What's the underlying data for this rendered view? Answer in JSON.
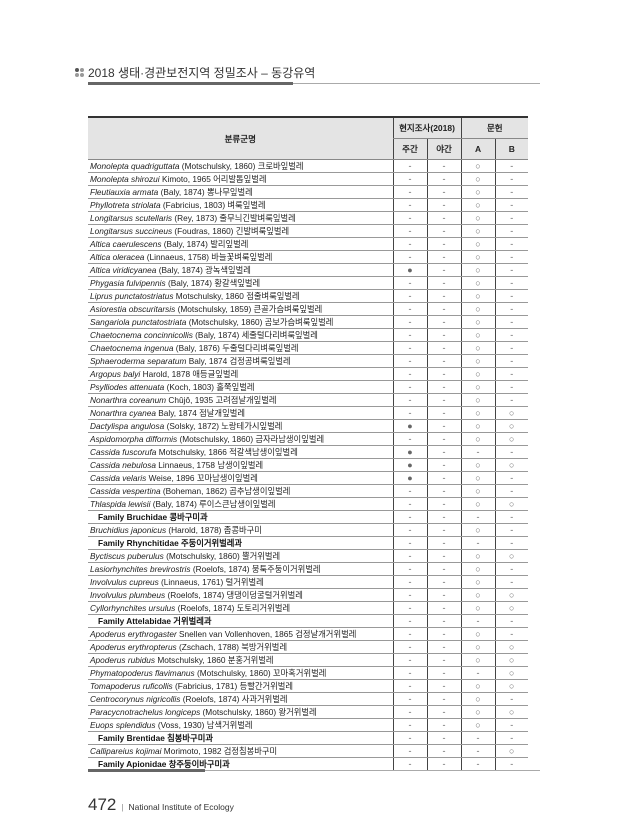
{
  "header": {
    "title": "2018 생태·경관보전지역 정밀조사 – 동강유역"
  },
  "table": {
    "col_name": "분류군명",
    "group_survey": "현지조사(2018)",
    "group_lit": "문헌",
    "sub_day": "주간",
    "sub_night": "야간",
    "sub_a": "A",
    "sub_b": "B",
    "rows": [
      {
        "sci": "Monolepta quadriguttata",
        "auth": " (Motschulsky, 1860) 크로바잎벌레",
        "m": [
          "-",
          "-",
          "○",
          "-"
        ]
      },
      {
        "sci": "Monolepta shirozui",
        "auth": " Kimoto, 1965 어리발톱잎벌레",
        "m": [
          "-",
          "-",
          "○",
          "-"
        ]
      },
      {
        "sci": "Fleutiauxia armata",
        "auth": " (Baly, 1874) 뽕나무잎벌레",
        "m": [
          "-",
          "-",
          "○",
          "-"
        ]
      },
      {
        "sci": "Phyllotreta striolata",
        "auth": " (Fabricius, 1803) 벼룩잎벌레",
        "m": [
          "-",
          "-",
          "○",
          "-"
        ]
      },
      {
        "sci": "Longitarsus scutellaris",
        "auth": " (Rey, 1873) 줄무늬긴발벼룩잎벌레",
        "m": [
          "-",
          "-",
          "○",
          "-"
        ]
      },
      {
        "sci": "Longitarsus succineus",
        "auth": " (Foudras, 1860) 긴발벼룩잎벌레",
        "m": [
          "-",
          "-",
          "○",
          "-"
        ]
      },
      {
        "sci": "Altica caerulescens",
        "auth": " (Baly, 1874) 발리잎벌레",
        "m": [
          "-",
          "-",
          "○",
          "-"
        ]
      },
      {
        "sci": "Altica oleracea",
        "auth": " (Linnaeus, 1758) 바늘꽃벼룩잎벌레",
        "m": [
          "-",
          "-",
          "○",
          "-"
        ]
      },
      {
        "sci": "Altica viridicyanea",
        "auth": " (Baly, 1874) 광녹색잎벌레",
        "m": [
          "●",
          "-",
          "○",
          "-"
        ]
      },
      {
        "sci": "Phygasia fulvipennis",
        "auth": " (Baly, 1874) 황갈색잎벌레",
        "m": [
          "-",
          "-",
          "○",
          "-"
        ]
      },
      {
        "sci": "Liprus punctatostriatus",
        "auth": " Motschulsky, 1860 점줄벼룩잎벌레",
        "m": [
          "-",
          "-",
          "○",
          "-"
        ]
      },
      {
        "sci": "Asiorestia obscuritarsis",
        "auth": " (Motschulsky, 1859) 큰골가슴벼룩잎벌레",
        "m": [
          "-",
          "-",
          "○",
          "-"
        ]
      },
      {
        "sci": "Sangariola punctatostriata",
        "auth": " (Motschulsky, 1860) 곰보가슴벼룩잎벌레",
        "m": [
          "-",
          "-",
          "○",
          "-"
        ]
      },
      {
        "sci": "Chaetocnema concinnicollis",
        "auth": " (Baly, 1874) 세줄털다리벼룩잎벌레",
        "m": [
          "-",
          "-",
          "○",
          "-"
        ]
      },
      {
        "sci": "Chaetocnema ingenua",
        "auth": " (Baly, 1876) 두줄털다리벼룩잎벌레",
        "m": [
          "-",
          "-",
          "○",
          "-"
        ]
      },
      {
        "sci": "Sphaeroderma separatum",
        "auth": " Baly, 1874 검정공벼룩잎벌레",
        "m": [
          "-",
          "-",
          "○",
          "-"
        ]
      },
      {
        "sci": "Argopus balyi",
        "auth": " Harold, 1878 애등글잎벌레",
        "m": [
          "-",
          "-",
          "○",
          "-"
        ]
      },
      {
        "sci": "Psylliodes attenuata",
        "auth": " (Koch, 1803) 홀쭉잎벌레",
        "m": [
          "-",
          "-",
          "○",
          "-"
        ]
      },
      {
        "sci": "Nonarthra coreanum",
        "auth": " Chûjô, 1935 고려점날개잎벌레",
        "m": [
          "-",
          "-",
          "○",
          "-"
        ]
      },
      {
        "sci": "Nonarthra cyanea",
        "auth": " Baly, 1874 점날개잎벌레",
        "m": [
          "-",
          "-",
          "○",
          "○"
        ]
      },
      {
        "sci": "Dactylispa angulosa",
        "auth": " (Solsky, 1872) 노랑테가시잎벌레",
        "m": [
          "●",
          "-",
          "○",
          "○"
        ]
      },
      {
        "sci": "Aspidomorpha difformis",
        "auth": " (Motschulsky, 1860) 금자라남생이잎벌레",
        "m": [
          "-",
          "-",
          "○",
          "○"
        ]
      },
      {
        "sci": "Cassida fuscorufa",
        "auth": " Motschulsky, 1866 적갈색남생이잎벌레",
        "m": [
          "●",
          "-",
          "-",
          "-"
        ]
      },
      {
        "sci": "Cassida nebulosa",
        "auth": " Linnaeus, 1758 남생이잎벌레",
        "m": [
          "●",
          "-",
          "○",
          "○"
        ]
      },
      {
        "sci": "Cassida velaris",
        "auth": " Weise, 1896 꼬마남생이잎벌레",
        "m": [
          "●",
          "-",
          "○",
          "-"
        ]
      },
      {
        "sci": "Cassida vespertina",
        "auth": " (Boheman, 1862) 곱추남생이잎벌레",
        "m": [
          "-",
          "-",
          "○",
          "-"
        ]
      },
      {
        "sci": "Thlaspida lewisii",
        "auth": " (Baly, 1874) 루이스큰남생이잎벌레",
        "m": [
          "-",
          "-",
          "○",
          "○"
        ]
      },
      {
        "family": "Family Bruchidae 콩바구미과",
        "m": [
          "-",
          "-",
          "-",
          "-"
        ]
      },
      {
        "sci": "Bruchidius japonicus",
        "auth": " (Harold, 1878) 좀콩바구미",
        "m": [
          "-",
          "-",
          "○",
          "-"
        ]
      },
      {
        "family": "Family Rhynchitidae 주둥이거위벌레과",
        "m": [
          "-",
          "-",
          "-",
          "-"
        ]
      },
      {
        "sci": "Byctiscus puberulus",
        "auth": " (Motschulsky, 1860) 뿔거위벌레",
        "m": [
          "-",
          "-",
          "○",
          "○"
        ]
      },
      {
        "sci": "Lasiorhynchites brevirostris",
        "auth": " (Roelofs, 1874) 뭉툭주둥이거위벌레",
        "m": [
          "-",
          "-",
          "○",
          "-"
        ]
      },
      {
        "sci": "Involvulus cupreus",
        "auth": " (Linnaeus, 1761) 털거위벌레",
        "m": [
          "-",
          "-",
          "○",
          "-"
        ]
      },
      {
        "sci": "Involvulus plumbeus",
        "auth": " (Roelofs, 1874) 댕댕이덩굴털거위벌레",
        "m": [
          "-",
          "-",
          "○",
          "○"
        ]
      },
      {
        "sci": "Cyllorhynchites ursulus",
        "auth": " (Roelofs, 1874) 도토리거위벌레",
        "m": [
          "-",
          "-",
          "○",
          "○"
        ]
      },
      {
        "family": "Family Attelabidae 거위벌레과",
        "m": [
          "-",
          "-",
          "-",
          "-"
        ]
      },
      {
        "sci": "Apoderus erythrogaster",
        "auth": " Snellen van Vollenhoven, 1865 검정날개거위벌레",
        "m": [
          "-",
          "-",
          "○",
          "-"
        ]
      },
      {
        "sci": "Apoderus erythropterus",
        "auth": " (Zschach, 1788) 북방거위벌레",
        "m": [
          "-",
          "-",
          "○",
          "○"
        ]
      },
      {
        "sci": "Apoderus rubidus",
        "auth": " Motschulsky, 1860 분홍거위벌레",
        "m": [
          "-",
          "-",
          "○",
          "○"
        ]
      },
      {
        "sci": "Phymatopoderus flavimanus",
        "auth": " (Motschulsky, 1860) 꼬마혹거위벌레",
        "m": [
          "-",
          "-",
          "-",
          "○"
        ]
      },
      {
        "sci": "Tomapoderus ruficollis",
        "auth": " (Fabricius, 1781) 등빨간거위벌레",
        "m": [
          "-",
          "-",
          "○",
          "○"
        ]
      },
      {
        "sci": "Centrocorynus nigricollis",
        "auth": " (Roelofs, 1874) 사과거위벌레",
        "m": [
          "-",
          "-",
          "○",
          "-"
        ]
      },
      {
        "sci": "Paracycnotrachelus longiceps",
        "auth": " (Motschulsky, 1860) 왕거위벌레",
        "m": [
          "-",
          "-",
          "○",
          "○"
        ]
      },
      {
        "sci": "Euops splendidus",
        "auth": " (Voss, 1930) 남색거위벌레",
        "m": [
          "-",
          "-",
          "○",
          "-"
        ]
      },
      {
        "family": "Family Brentidae 침봉바구미과",
        "m": [
          "-",
          "-",
          "-",
          "-"
        ]
      },
      {
        "sci": "Callipareius kojimai",
        "auth": " Morimoto, 1982 검정침봉바구미",
        "m": [
          "-",
          "-",
          "-",
          "○"
        ]
      },
      {
        "family": "Family Apionidae 창주둥이바구미과",
        "m": [
          "-",
          "-",
          "-",
          "-"
        ]
      }
    ]
  },
  "footer": {
    "page_number": "472",
    "separator": "|",
    "institute": "National Institute of Ecology"
  }
}
